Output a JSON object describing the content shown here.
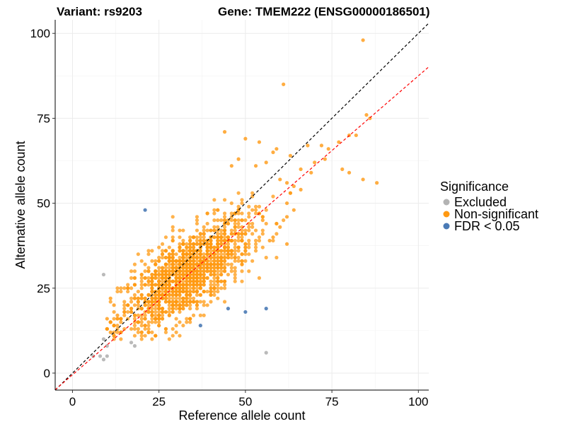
{
  "chart_data": {
    "type": "scatter",
    "title_left": "Variant: rs9203",
    "title_right": "Gene: TMEM222 (ENSG00000186501)",
    "xlabel": "Reference allele count",
    "ylabel": "Alternative allele count",
    "xlim": [
      -5,
      103
    ],
    "ylim": [
      -5,
      104
    ],
    "xticks": [
      0,
      25,
      50,
      75,
      100
    ],
    "yticks": [
      0,
      25,
      50,
      75,
      100
    ],
    "grid": true,
    "legend": {
      "title": "Significance",
      "position": "right",
      "entries": [
        {
          "label": "Excluded",
          "color": "#b3b3b3"
        },
        {
          "label": "Non-significant",
          "color": "#ff9912"
        },
        {
          "label": "FDR < 0.05",
          "color": "#4a7ab5"
        }
      ]
    },
    "reference_lines": [
      {
        "name": "identity",
        "slope": 1,
        "intercept": 0,
        "color": "#000000",
        "dash": true
      },
      {
        "name": "fit",
        "slope": 0.88,
        "intercept": -0.5,
        "color": "#ff0000",
        "dash": true
      }
    ],
    "series": [
      {
        "name": "Excluded",
        "color": "#b3b3b3",
        "points": [
          [
            9,
            29
          ],
          [
            56,
            6
          ],
          [
            6,
            5
          ],
          [
            8,
            5
          ],
          [
            9,
            4
          ],
          [
            10,
            5
          ],
          [
            9,
            10
          ],
          [
            10,
            8
          ],
          [
            18,
            8
          ],
          [
            17,
            9
          ]
        ]
      },
      {
        "name": "FDR < 0.05",
        "color": "#4a7ab5",
        "points": [
          [
            21,
            48
          ],
          [
            37,
            14
          ],
          [
            45,
            19
          ],
          [
            50,
            18
          ],
          [
            56,
            19
          ]
        ]
      },
      {
        "name": "Non-significant",
        "color": "#ff9912",
        "cloud": {
          "center": [
            33,
            29
          ],
          "n": 1500,
          "sx": 9.5,
          "sy": 8.5,
          "rho": 0.72
        },
        "points": [
          [
            84,
            98
          ],
          [
            61,
            85
          ],
          [
            44,
            71
          ],
          [
            50,
            69
          ],
          [
            54,
            68
          ],
          [
            59,
            66
          ],
          [
            63,
            64
          ],
          [
            68,
            67
          ],
          [
            72,
            67
          ],
          [
            74,
            66
          ],
          [
            77,
            68
          ],
          [
            80,
            70
          ],
          [
            66,
            60
          ],
          [
            70,
            62
          ],
          [
            73,
            63
          ],
          [
            78,
            60
          ],
          [
            80,
            59
          ],
          [
            82,
            70
          ],
          [
            84,
            57
          ],
          [
            85,
            76
          ],
          [
            86,
            75
          ],
          [
            88,
            56
          ],
          [
            69,
            59
          ],
          [
            56,
            62
          ],
          [
            58,
            65
          ],
          [
            53,
            61
          ],
          [
            48,
            63
          ],
          [
            46,
            61
          ],
          [
            60,
            57
          ],
          [
            62,
            56
          ],
          [
            64,
            55
          ],
          [
            66,
            54
          ],
          [
            62,
            50
          ],
          [
            64,
            48
          ],
          [
            62,
            46
          ],
          [
            58,
            40
          ],
          [
            62,
            38
          ],
          [
            57,
            39
          ],
          [
            60,
            43
          ],
          [
            55,
            45
          ],
          [
            63,
            53
          ],
          [
            14,
            12
          ],
          [
            12,
            14
          ],
          [
            11,
            15
          ],
          [
            10,
            13
          ],
          [
            12,
            11
          ],
          [
            13,
            17
          ],
          [
            15,
            18
          ],
          [
            16,
            20
          ],
          [
            12,
            20
          ],
          [
            11,
            22
          ],
          [
            10,
            16
          ],
          [
            11,
            12
          ],
          [
            14,
            16
          ]
        ]
      }
    ]
  }
}
